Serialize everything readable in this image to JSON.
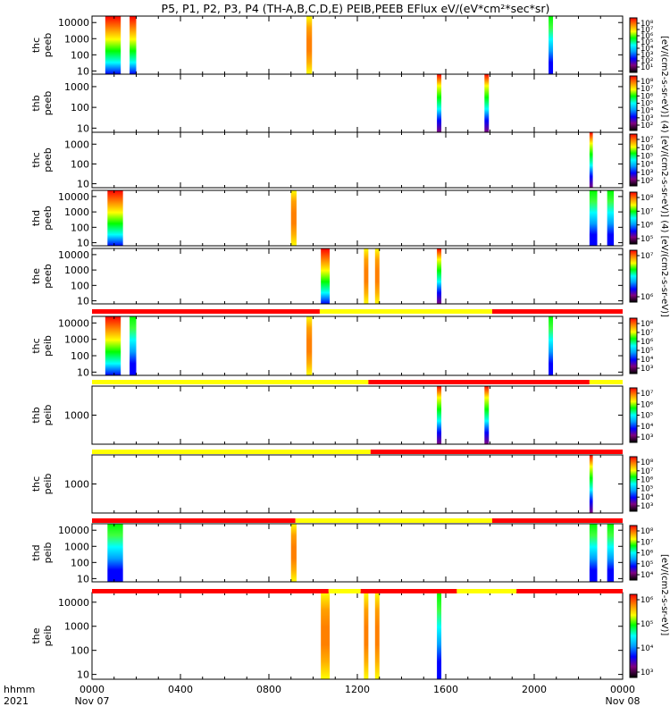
{
  "title": "P5, P1, P2, P3, P4 (TH-A,B,C,D,E) PEIB,PEEB EFlux eV/(eV*cm²*sec*sr)",
  "colorbar_label_long": "[eV/(cm2-s-sr-eV)] (4) [eV/(cm2-s-sr-eV)] (4) [eV/(cm2-s-sr-eV)]",
  "colorbar_label_short": "[eV/(cm2-s-sr-eV)]",
  "time_axis": {
    "row_label": "hhmm",
    "year_label": "2021",
    "ticks": [
      {
        "hour": 0,
        "label": "0000",
        "date": "Nov 07"
      },
      {
        "hour": 4,
        "label": "0400",
        "date": ""
      },
      {
        "hour": 8,
        "label": "0800",
        "date": ""
      },
      {
        "hour": 12,
        "label": "1200",
        "date": ""
      },
      {
        "hour": 16,
        "label": "1600",
        "date": ""
      },
      {
        "hour": 20,
        "label": "2000",
        "date": ""
      },
      {
        "hour": 24,
        "label": "0000",
        "date": "Nov 08"
      }
    ]
  },
  "colors": {
    "status_red": "#ff0000",
    "status_yellow": "#ffff00",
    "colormap": [
      "#000000",
      "#800080",
      "#0000ff",
      "#00a0ff",
      "#00ffff",
      "#00ff00",
      "#ffff00",
      "#ff8000",
      "#ff0000"
    ]
  },
  "chart_data": {
    "type": "heatmap",
    "x_unit": "hours since 0000 Nov 07",
    "xlim": [
      0,
      24
    ],
    "panels": [
      {
        "sc": "thc",
        "kind": "peeb",
        "yticks": [
          "10000",
          "1000",
          "100",
          "10"
        ],
        "ymax_exp": 4.4,
        "ymin_exp": 0.8,
        "cb_ticks": [
          "10⁸",
          "10⁷",
          "10⁶",
          "10⁵",
          "10⁴",
          "10³",
          "10²",
          "10¹"
        ],
        "blocks": [
          {
            "t0": 0.6,
            "t1": 1.3,
            "style": "rainbow"
          },
          {
            "t0": 1.7,
            "t1": 2.0,
            "style": "rainbow"
          },
          {
            "t0": 9.7,
            "t1": 9.95,
            "style": "warm"
          },
          {
            "t0": 20.65,
            "t1": 20.85,
            "style": "cool"
          }
        ],
        "status": null
      },
      {
        "sc": "thb",
        "kind": "peeb",
        "yticks": [
          "1000",
          "100",
          "10"
        ],
        "ymax_exp": 3.6,
        "ymin_exp": 0.8,
        "cb_ticks": [
          "10⁸",
          "10⁷",
          "10⁶",
          "10⁵",
          "10⁴",
          "10³",
          "10²"
        ],
        "blocks": [
          {
            "t0": 15.6,
            "t1": 15.8,
            "style": "bands"
          },
          {
            "t0": 17.75,
            "t1": 17.95,
            "style": "bands"
          }
        ],
        "status": null
      },
      {
        "sc": "thc",
        "kind": "peeb",
        "yticks": [
          "1000",
          "100",
          "10"
        ],
        "ymax_exp": 3.6,
        "ymin_exp": 0.8,
        "cb_ticks": [
          "10⁷",
          "10⁶",
          "10⁵",
          "10⁴",
          "10³",
          "10²"
        ],
        "blocks": [
          {
            "t0": 22.5,
            "t1": 22.65,
            "style": "bands"
          }
        ],
        "status": null
      },
      {
        "sc": "thd",
        "kind": "peeb",
        "yticks": [
          "10000",
          "1000",
          "100",
          "10"
        ],
        "ymax_exp": 4.4,
        "ymin_exp": 0.8,
        "cb_ticks": [
          "10⁸",
          "10⁷",
          "10⁶",
          "10⁵"
        ],
        "blocks": [
          {
            "t0": 0.7,
            "t1": 1.4,
            "style": "rainbow"
          },
          {
            "t0": 9.0,
            "t1": 9.25,
            "style": "warm"
          },
          {
            "t0": 22.5,
            "t1": 22.85,
            "style": "cool"
          },
          {
            "t0": 23.3,
            "t1": 23.6,
            "style": "cool"
          }
        ],
        "status": null
      },
      {
        "sc": "the",
        "kind": "peeb",
        "yticks": [
          "10000",
          "1000",
          "100",
          "10"
        ],
        "ymax_exp": 4.4,
        "ymin_exp": 0.8,
        "cb_ticks": [
          "10⁷",
          "10⁶"
        ],
        "blocks": [
          {
            "t0": 10.35,
            "t1": 10.75,
            "style": "rainbow"
          },
          {
            "t0": 12.3,
            "t1": 12.5,
            "style": "warm"
          },
          {
            "t0": 12.8,
            "t1": 13.0,
            "style": "warm"
          },
          {
            "t0": 15.6,
            "t1": 15.8,
            "style": "bands"
          }
        ],
        "status": [
          {
            "t0": 0,
            "t1": 10.3,
            "c": "red"
          },
          {
            "t0": 10.3,
            "t1": 18.1,
            "c": "yellow"
          },
          {
            "t0": 18.1,
            "t1": 24,
            "c": "red"
          }
        ]
      },
      {
        "sc": "thc",
        "kind": "peib",
        "yticks": [
          "10000",
          "1000",
          "100",
          "10"
        ],
        "ymax_exp": 4.4,
        "ymin_exp": 0.8,
        "cb_ticks": [
          "10⁸",
          "10⁷",
          "10⁶",
          "10⁵",
          "10⁴",
          "10³"
        ],
        "blocks": [
          {
            "t0": 0.6,
            "t1": 1.3,
            "style": "rainbow"
          },
          {
            "t0": 1.7,
            "t1": 2.0,
            "style": "cool"
          },
          {
            "t0": 9.7,
            "t1": 9.95,
            "style": "warm"
          },
          {
            "t0": 20.65,
            "t1": 20.85,
            "style": "cool"
          }
        ],
        "status": [
          {
            "t0": 0,
            "t1": 12.5,
            "c": "yellow"
          },
          {
            "t0": 12.5,
            "t1": 22.5,
            "c": "red"
          },
          {
            "t0": 22.5,
            "t1": 24,
            "c": "yellow"
          }
        ]
      },
      {
        "sc": "thb",
        "kind": "peib",
        "yticks": [
          "1000"
        ],
        "ymax_exp": 3.6,
        "ymin_exp": 2.4,
        "cb_ticks": [
          "10⁷",
          "10⁶",
          "10⁵",
          "10⁴",
          "10³"
        ],
        "blocks": [
          {
            "t0": 15.6,
            "t1": 15.8,
            "style": "bands"
          },
          {
            "t0": 17.75,
            "t1": 17.95,
            "style": "bands"
          }
        ],
        "status": [
          {
            "t0": 0,
            "t1": 12.6,
            "c": "yellow"
          },
          {
            "t0": 12.6,
            "t1": 24,
            "c": "red"
          }
        ]
      },
      {
        "sc": "thc",
        "kind": "peib",
        "yticks": [
          "1000"
        ],
        "ymax_exp": 3.6,
        "ymin_exp": 2.4,
        "cb_ticks": [
          "10⁸",
          "10⁷",
          "10⁶",
          "10⁵",
          "10⁴",
          "10³"
        ],
        "blocks": [
          {
            "t0": 22.5,
            "t1": 22.65,
            "style": "bands"
          }
        ],
        "status": [
          {
            "t0": 0,
            "t1": 9.2,
            "c": "red"
          },
          {
            "t0": 9.2,
            "t1": 18.1,
            "c": "yellow"
          },
          {
            "t0": 18.1,
            "t1": 24,
            "c": "red"
          }
        ]
      },
      {
        "sc": "thd",
        "kind": "peib",
        "yticks": [
          "10000",
          "1000",
          "100",
          "10"
        ],
        "ymax_exp": 4.4,
        "ymin_exp": 0.8,
        "cb_ticks": [
          "10⁸",
          "10⁷",
          "10⁶",
          "10⁵",
          "10⁴"
        ],
        "blocks": [
          {
            "t0": 0.7,
            "t1": 1.4,
            "style": "cool"
          },
          {
            "t0": 9.0,
            "t1": 9.25,
            "style": "warm"
          },
          {
            "t0": 22.5,
            "t1": 22.85,
            "style": "cool"
          },
          {
            "t0": 23.3,
            "t1": 23.6,
            "style": "cool"
          }
        ],
        "status": [
          {
            "t0": 0,
            "t1": 10.7,
            "c": "red"
          },
          {
            "t0": 10.7,
            "t1": 12.15,
            "c": "yellow"
          },
          {
            "t0": 12.15,
            "t1": 16.5,
            "c": "red"
          },
          {
            "t0": 16.5,
            "t1": 19.2,
            "c": "yellow"
          },
          {
            "t0": 19.2,
            "t1": 24,
            "c": "red"
          }
        ]
      },
      {
        "sc": "the",
        "kind": "peib",
        "yticks": [
          "10000",
          "1000",
          "100",
          "10"
        ],
        "ymax_exp": 4.4,
        "ymin_exp": 0.8,
        "cb_ticks": [
          "10⁶",
          "10⁵",
          "10⁴",
          "10³"
        ],
        "blocks": [
          {
            "t0": 10.35,
            "t1": 10.75,
            "style": "warm"
          },
          {
            "t0": 12.3,
            "t1": 12.5,
            "style": "warm"
          },
          {
            "t0": 12.8,
            "t1": 13.0,
            "style": "warm"
          },
          {
            "t0": 15.6,
            "t1": 15.8,
            "style": "cool"
          }
        ],
        "status": null
      }
    ]
  }
}
